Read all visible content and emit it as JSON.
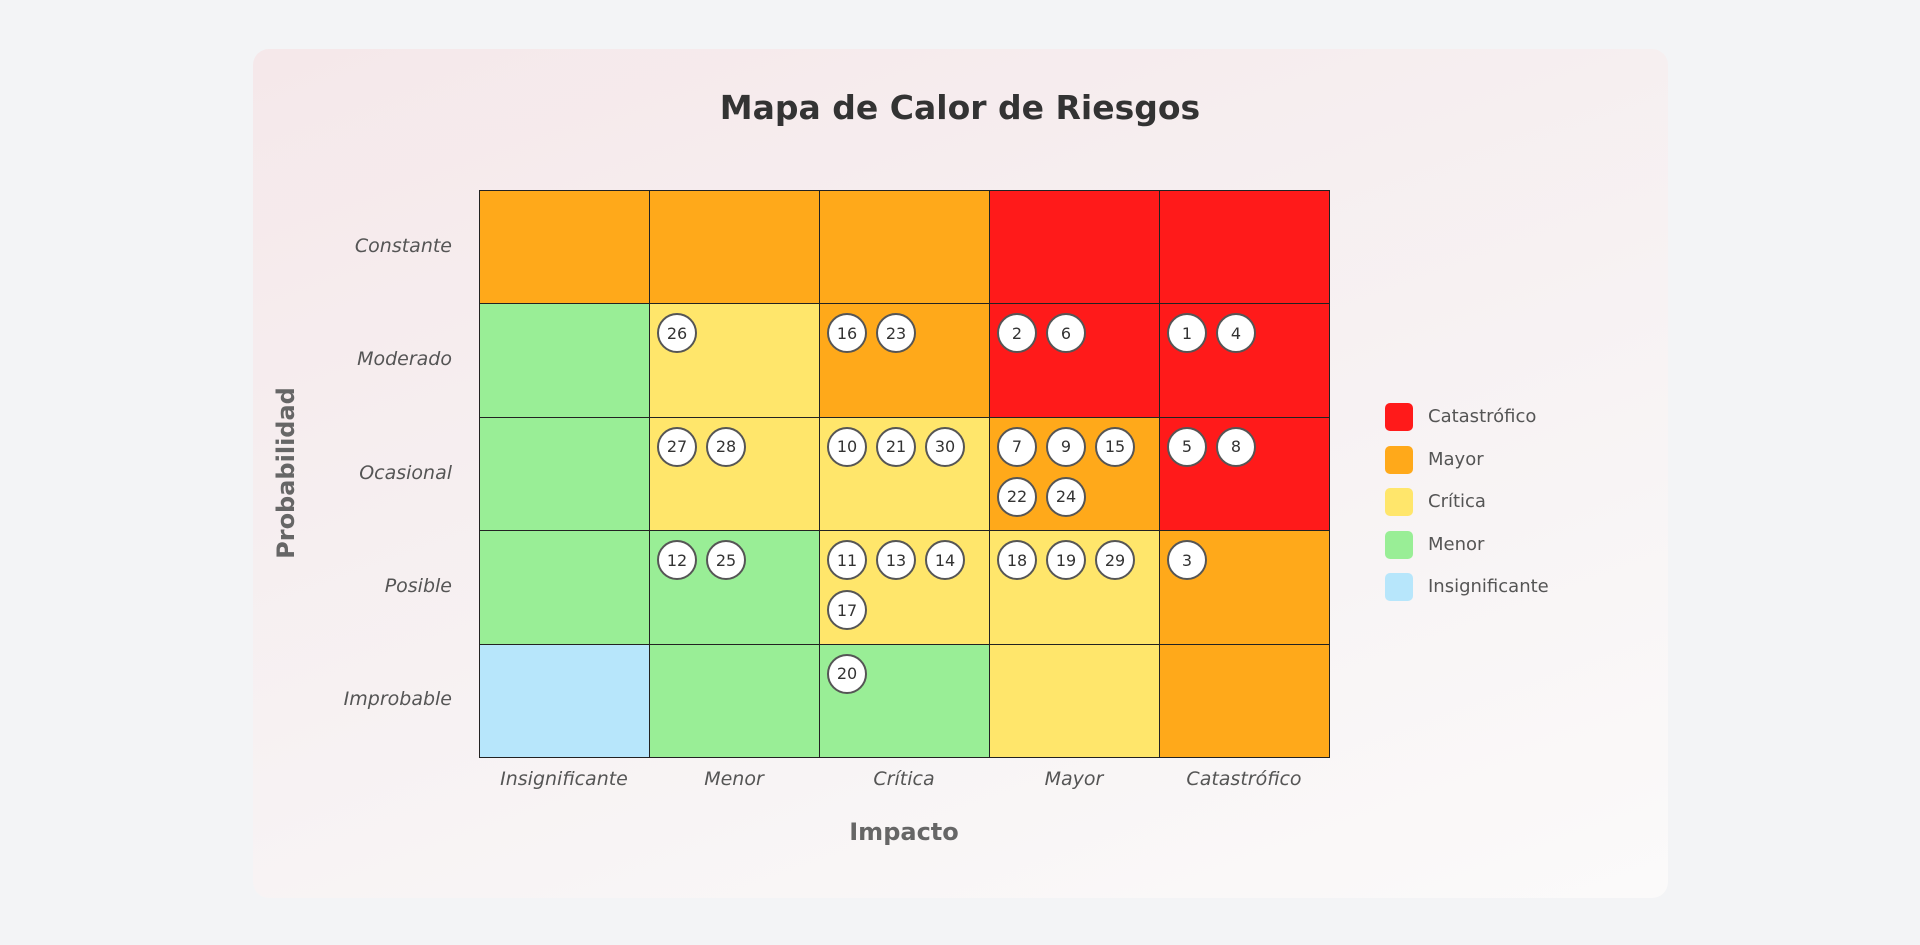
{
  "chart_data": {
    "type": "heatmap",
    "title": "Mapa de Calor de Riesgos",
    "xlabel": "Impacto",
    "ylabel": "Probabilidad",
    "x_categories": [
      "Insignificante",
      "Menor",
      "Crítica",
      "Mayor",
      "Catastrófico"
    ],
    "y_categories": [
      "Constante",
      "Moderado",
      "Ocasional",
      "Posible",
      "Improbable"
    ],
    "severity_grid": [
      [
        "Mayor",
        "Mayor",
        "Mayor",
        "Catastrófico",
        "Catastrófico"
      ],
      [
        "Menor",
        "Crítica",
        "Mayor",
        "Catastrófico",
        "Catastrófico"
      ],
      [
        "Menor",
        "Crítica",
        "Crítica",
        "Mayor",
        "Catastrófico"
      ],
      [
        "Menor",
        "Menor",
        "Crítica",
        "Crítica",
        "Mayor"
      ],
      [
        "Insignificante",
        "Menor",
        "Menor",
        "Crítica",
        "Mayor"
      ]
    ],
    "risks": [
      [
        "",
        "",
        "",
        "",
        ""
      ],
      [
        "",
        "26",
        "16 23",
        "2 6",
        "1 4"
      ],
      [
        "",
        "27 28",
        "10 21 30",
        "7 9 15 22 24",
        "5 8"
      ],
      [
        "",
        "12 25",
        "11 13 14 17",
        "18 19 29",
        "3"
      ],
      [
        "",
        "",
        "20",
        "",
        ""
      ]
    ],
    "legend": [
      {
        "label": "Catastrófico",
        "color": "#ff1a1a"
      },
      {
        "label": "Mayor",
        "color": "#ffa91a"
      },
      {
        "label": "Crítica",
        "color": "#ffe66b"
      },
      {
        "label": "Menor",
        "color": "#99ee96"
      },
      {
        "label": "Insignificante",
        "color": "#b7e6fb"
      }
    ],
    "legend_position": "right"
  }
}
